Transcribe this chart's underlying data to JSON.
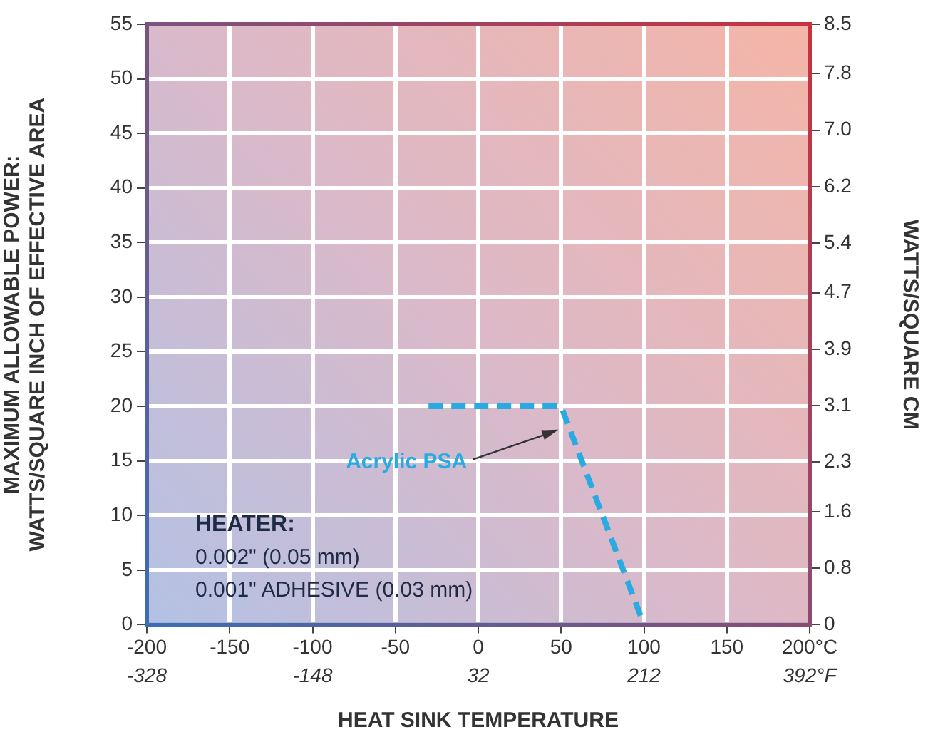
{
  "chart_data": {
    "type": "line",
    "xlabel": "HEAT SINK TEMPERATURE",
    "ylabel": "MAXIMUM ALLOWABLE POWER:\nWATTS/SQUARE INCH OF EFFECTIVE AREA",
    "y2label": "WATTS/SQUARE CM",
    "series": [
      {
        "color": "#29abe2",
        "x": [
          -30,
          50,
          100
        ],
        "values": [
          20,
          20,
          0
        ]
      }
    ],
    "xlim": [
      -200,
      200
    ],
    "xticks": [
      -200,
      -150,
      -100,
      -50,
      0,
      50,
      100,
      150,
      {
        "value": 200,
        "label": "200°C"
      }
    ],
    "x2lim": [
      -328,
      392
    ],
    "x2ticks": [
      -328,
      -148,
      32,
      212,
      {
        "value": 392,
        "label": "392°F"
      }
    ],
    "ylim": [
      0,
      55
    ],
    "yticks": [
      0,
      5,
      10,
      15,
      20,
      25,
      30,
      35,
      40,
      45,
      50,
      55
    ],
    "y2lim": [
      0,
      8.5
    ],
    "y2ticks": [
      0,
      0.8,
      1.6,
      2.3,
      3.1,
      3.9,
      4.7,
      5.4,
      6.2,
      {
        "value": 7,
        "label": "7.0"
      },
      7.8,
      8.5
    ],
    "grid": true,
    "marker": "none",
    "line_style": "dashed",
    "annotations": [
      {
        "text": "Acrylic PSA",
        "x": 50,
        "y": 18
      },
      "HEATER:",
      "0.002\" (0.05 mm)",
      "0.001\" ADHESIVE (0.03 mm)"
    ]
  }
}
